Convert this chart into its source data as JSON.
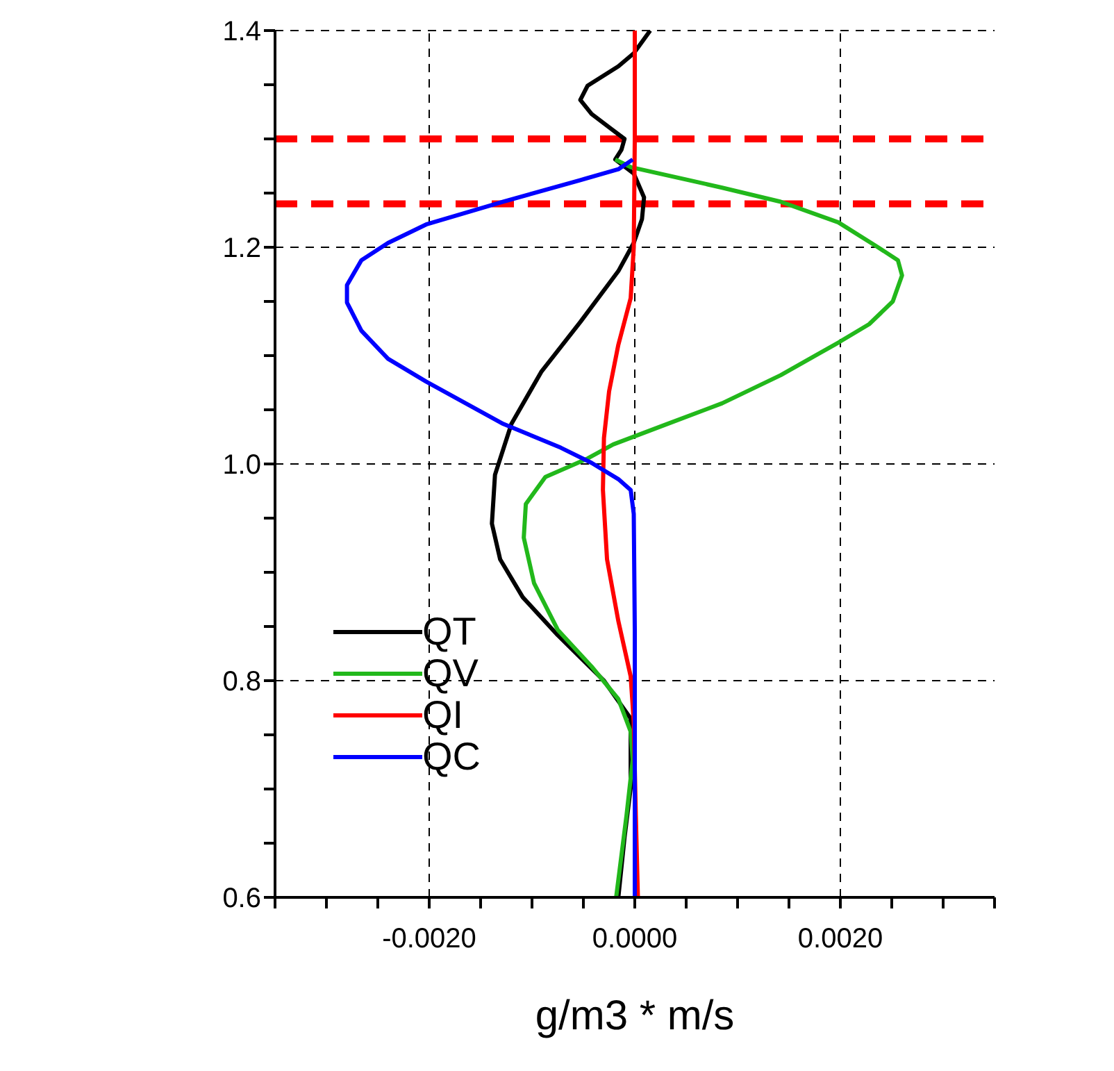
{
  "chart_data": {
    "type": "line",
    "xlabel": "g/m3 * m/s",
    "xlim": [
      -0.0035,
      0.0035
    ],
    "xticks": [
      {
        "value": -0.0035,
        "label": null
      },
      {
        "value": -0.003,
        "label": null
      },
      {
        "value": -0.0025,
        "label": null
      },
      {
        "value": -0.002,
        "label": "-0.0020"
      },
      {
        "value": -0.0015,
        "label": null
      },
      {
        "value": -0.001,
        "label": null
      },
      {
        "value": -0.0005,
        "label": null
      },
      {
        "value": 0,
        "label": "0.0000"
      },
      {
        "value": 0.0005,
        "label": null
      },
      {
        "value": 0.001,
        "label": null
      },
      {
        "value": 0.0015,
        "label": null
      },
      {
        "value": 0.002,
        "label": "0.0020"
      },
      {
        "value": 0.0025,
        "label": null
      },
      {
        "value": 0.003,
        "label": null
      },
      {
        "value": 0.0035,
        "label": null
      }
    ],
    "ylim": [
      0.6,
      1.4
    ],
    "yticks": [
      0.6,
      {
        "value": 0.65,
        "label": null
      },
      {
        "value": 0.7,
        "label": null
      },
      {
        "value": 0.75,
        "label": null
      },
      0.8,
      {
        "value": 0.85,
        "label": null
      },
      {
        "value": 0.9,
        "label": null
      },
      {
        "value": 0.95,
        "label": null
      },
      {
        "value": 1.0,
        "label": "1.0"
      },
      {
        "value": 1.05,
        "label": null
      },
      {
        "value": 1.1,
        "label": null
      },
      {
        "value": 1.15,
        "label": null
      },
      1.2,
      {
        "value": 1.25,
        "label": null
      },
      {
        "value": 1.3,
        "label": null
      },
      {
        "value": 1.35,
        "label": null
      },
      1.4
    ],
    "grid": true,
    "legend": "bottom left",
    "line_style": "solid",
    "marker": "none",
    "series": [
      {
        "name": "QT",
        "color": "#000000",
        "x": [
          0.00015,
          -1e-05,
          -0.00016,
          -0.00046,
          -0.00053,
          -0.00042,
          -0.00024,
          -0.0001,
          -0.00013,
          -0.00019,
          -1e-05,
          9e-05,
          7e-05,
          -1e-05,
          -0.00016,
          -0.00053,
          -0.00091,
          -0.0012,
          -0.00136,
          -0.00139,
          -0.00131,
          -0.00109,
          -0.00075,
          -0.0003,
          -4e-05,
          -4e-05,
          -0.0001,
          -0.00016
        ],
        "values": [
          1.4,
          1.379,
          1.367,
          1.349,
          1.336,
          1.323,
          1.31,
          1.3,
          1.29,
          1.281,
          1.268,
          1.246,
          1.226,
          1.204,
          1.178,
          1.131,
          1.085,
          1.037,
          0.99,
          0.945,
          0.912,
          0.877,
          0.842,
          0.8,
          0.765,
          0.701,
          0.655,
          0.6
        ]
      },
      {
        "name": "QV",
        "color": "#22b81b",
        "x": [
          -0.00019,
          -4e-05,
          0.00085,
          0.00142,
          0.00198,
          0.00235,
          0.00256,
          0.0026,
          0.00251,
          0.00228,
          0.00198,
          0.00142,
          0.00085,
          0.00029,
          -0.00021,
          -0.00046,
          -0.00087,
          -0.00106,
          -0.00108,
          -0.00098,
          -0.00075,
          -0.00042,
          -0.00016,
          -4e-05,
          -2e-05,
          -8e-05,
          -0.00018
        ],
        "values": [
          1.281,
          1.274,
          1.255,
          1.242,
          1.223,
          1.201,
          1.188,
          1.174,
          1.15,
          1.129,
          1.112,
          1.082,
          1.056,
          1.036,
          1.018,
          1.005,
          0.988,
          0.963,
          0.932,
          0.89,
          0.847,
          0.813,
          0.783,
          0.753,
          0.727,
          0.676,
          0.601
        ]
      },
      {
        "name": "QI",
        "color": "#ff0000",
        "x": [
          0,
          0,
          -1e-05,
          -4e-05,
          -0.00016,
          -0.00025,
          -0.0003,
          -0.00031,
          -0.00027,
          -0.00016,
          -4e-05,
          -1e-05,
          1e-05,
          3e-05
        ],
        "values": [
          1.4,
          1.3,
          1.2,
          1.153,
          1.11,
          1.067,
          1.024,
          0.976,
          0.912,
          0.855,
          0.804,
          0.762,
          0.676,
          0.601
        ]
      },
      {
        "name": "QC",
        "color": "#0000ff",
        "x": [
          -2e-05,
          -0.00016,
          -0.00053,
          -0.00128,
          -0.00203,
          -0.0024,
          -0.00266,
          -0.0028,
          -0.0028,
          -0.00266,
          -0.0024,
          -0.00203,
          -0.00128,
          -0.00072,
          -0.00042,
          -0.00016,
          -4e-05,
          -1e-05,
          0,
          0
        ],
        "values": [
          1.281,
          1.272,
          1.262,
          1.242,
          1.221,
          1.204,
          1.188,
          1.165,
          1.149,
          1.123,
          1.097,
          1.076,
          1.037,
          1.015,
          1.001,
          0.986,
          0.976,
          0.954,
          0.847,
          0.601
        ]
      }
    ],
    "ref_lines": [
      {
        "axis": "y",
        "value": 1.3,
        "color": "#ff0000",
        "line_style": "dashed"
      },
      {
        "axis": "y",
        "value": 1.24,
        "color": "#ff0000",
        "line_style": "dashed"
      }
    ]
  }
}
